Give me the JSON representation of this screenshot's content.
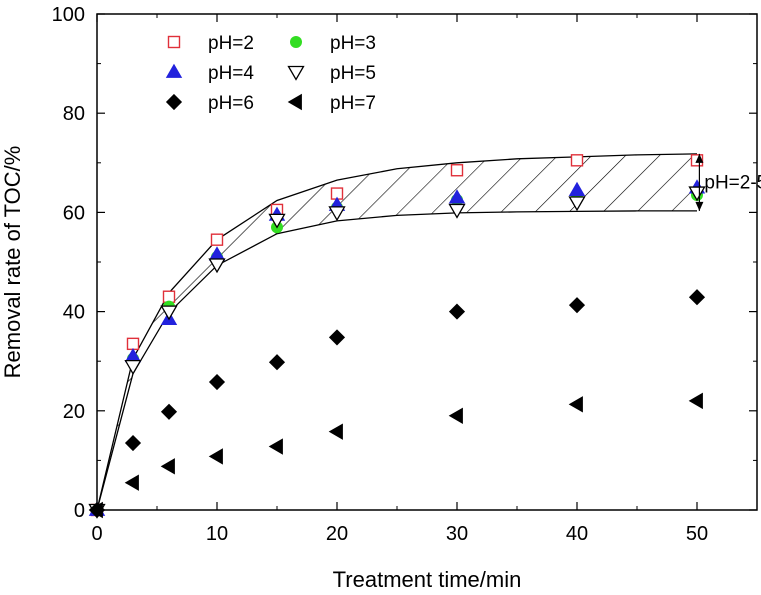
{
  "chart_data": {
    "type": "scatter",
    "xlabel": "Treatment time/min",
    "ylabel": "Removal rate of TOC/%",
    "xlim": [
      0,
      55
    ],
    "ylim": [
      0,
      100
    ],
    "xticks": [
      "0",
      "10",
      "20",
      "30",
      "40",
      "50"
    ],
    "yticks": [
      "0",
      "20",
      "40",
      "60",
      "80",
      "100"
    ],
    "grid": false,
    "legend_position": "top-left",
    "series": [
      {
        "name": "pH=2",
        "marker": "open-square",
        "color": "#e0303a",
        "points": [
          [
            0,
            0
          ],
          [
            3,
            33.5
          ],
          [
            6,
            43
          ],
          [
            10,
            54.5
          ],
          [
            15,
            60.5
          ],
          [
            20,
            63.8
          ],
          [
            30,
            68.5
          ],
          [
            40,
            70.5
          ],
          [
            50,
            70.5
          ]
        ]
      },
      {
        "name": "pH=3",
        "marker": "filled-circle",
        "color": "#33dd22",
        "points": [
          [
            0,
            0
          ],
          [
            3,
            30.5
          ],
          [
            6,
            41
          ],
          [
            10,
            51
          ],
          [
            15,
            57
          ],
          [
            20,
            61
          ],
          [
            30,
            62.5
          ],
          [
            40,
            63
          ],
          [
            50,
            63.5
          ]
        ]
      },
      {
        "name": "pH=4",
        "marker": "filled-triangle-up",
        "color": "#2222dd",
        "points": [
          [
            0,
            0
          ],
          [
            3,
            31
          ],
          [
            6,
            38.5
          ],
          [
            10,
            51.5
          ],
          [
            15,
            59.5
          ],
          [
            20,
            61.5
          ],
          [
            30,
            63
          ],
          [
            40,
            64.5
          ],
          [
            50,
            65
          ]
        ]
      },
      {
        "name": "pH=5",
        "marker": "open-triangle-down",
        "color": "#000000",
        "points": [
          [
            0,
            0
          ],
          [
            3,
            29
          ],
          [
            6,
            40
          ],
          [
            10,
            49.5
          ],
          [
            15,
            58.5
          ],
          [
            20,
            60
          ],
          [
            30,
            60.5
          ],
          [
            40,
            62
          ],
          [
            50,
            64
          ]
        ]
      },
      {
        "name": "pH=6",
        "marker": "filled-diamond",
        "color": "#000000",
        "points": [
          [
            0,
            0
          ],
          [
            3,
            13.5
          ],
          [
            6,
            19.8
          ],
          [
            10,
            25.8
          ],
          [
            15,
            29.8
          ],
          [
            20,
            34.8
          ],
          [
            30,
            40
          ],
          [
            40,
            41.3
          ],
          [
            50,
            42.9
          ]
        ]
      },
      {
        "name": "pH=7",
        "marker": "filled-triangle-left",
        "color": "#000000",
        "points": [
          [
            0,
            0
          ],
          [
            3,
            5.5
          ],
          [
            6,
            8.8
          ],
          [
            10,
            10.8
          ],
          [
            15,
            12.8
          ],
          [
            20,
            15.8
          ],
          [
            30,
            19
          ],
          [
            40,
            21.3
          ],
          [
            50,
            22
          ]
        ]
      }
    ],
    "band": {
      "upper": [
        [
          0,
          0
        ],
        [
          3,
          30.5
        ],
        [
          6,
          43.8
        ],
        [
          10,
          54.5
        ],
        [
          15,
          62.4
        ],
        [
          20,
          66.5
        ],
        [
          25,
          68.8
        ],
        [
          30,
          70
        ],
        [
          35,
          70.8
        ],
        [
          40,
          71.2
        ],
        [
          45,
          71.6
        ],
        [
          50,
          71.8
        ]
      ],
      "lower": [
        [
          0,
          0
        ],
        [
          3,
          27.5
        ],
        [
          6,
          39.8
        ],
        [
          10,
          49.3
        ],
        [
          15,
          55.7
        ],
        [
          20,
          58.3
        ],
        [
          25,
          59.4
        ],
        [
          30,
          59.9
        ],
        [
          35,
          60.1
        ],
        [
          40,
          60.2
        ],
        [
          45,
          60.3
        ],
        [
          50,
          60.3
        ]
      ],
      "style": "hatched"
    },
    "annotation": {
      "text": "pH=2-5",
      "x": 50.2,
      "y_top": 71.8,
      "y_bottom": 60.3
    }
  }
}
